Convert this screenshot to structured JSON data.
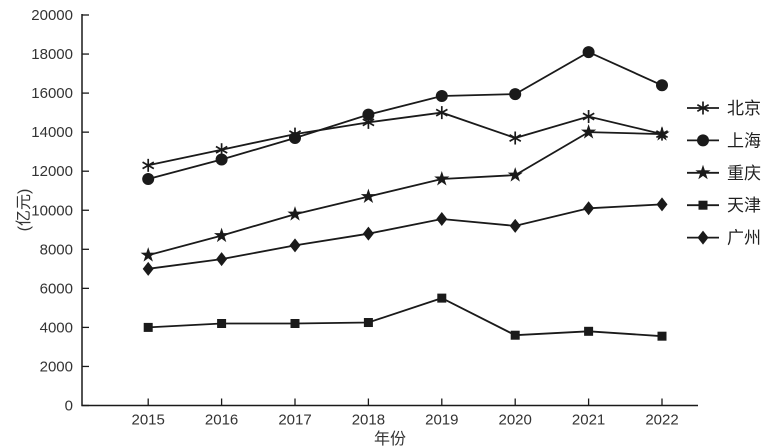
{
  "chart_data": {
    "type": "line",
    "title": "",
    "xlabel": "年份",
    "ylabel": "(亿元)",
    "x": [
      "2015",
      "2016",
      "2017",
      "2018",
      "2019",
      "2020",
      "2021",
      "2022"
    ],
    "yticks": [
      "0",
      "2000",
      "4000",
      "6000",
      "8000",
      "10000",
      "12000",
      "14000",
      "16000",
      "18000",
      "20000"
    ],
    "ylim": [
      0,
      20000
    ],
    "grid": false,
    "legend_position": "right-outside",
    "line_color": "#1a1a1a",
    "text_color": "#333333",
    "background": "#ffffff",
    "series": [
      {
        "id": "beijing",
        "name": "北京",
        "marker": "asterisk",
        "values": [
          12300,
          13100,
          13900,
          14500,
          15000,
          13700,
          14800,
          13900
        ]
      },
      {
        "id": "shanghai",
        "name": "上海",
        "marker": "circle",
        "values": [
          11600,
          12600,
          13700,
          14900,
          15850,
          15950,
          18100,
          16400
        ]
      },
      {
        "id": "chongqing",
        "name": "重庆",
        "marker": "star",
        "values": [
          7700,
          8700,
          9800,
          10700,
          11600,
          11800,
          14000,
          13900
        ]
      },
      {
        "id": "tianjin",
        "name": "天津",
        "marker": "square",
        "values": [
          4000,
          4200,
          4200,
          4250,
          5500,
          3600,
          3800,
          3550
        ]
      },
      {
        "id": "guangzhou",
        "name": "广州",
        "marker": "diamond",
        "values": [
          7000,
          7500,
          8200,
          8800,
          9550,
          9200,
          10100,
          10300
        ]
      }
    ]
  }
}
